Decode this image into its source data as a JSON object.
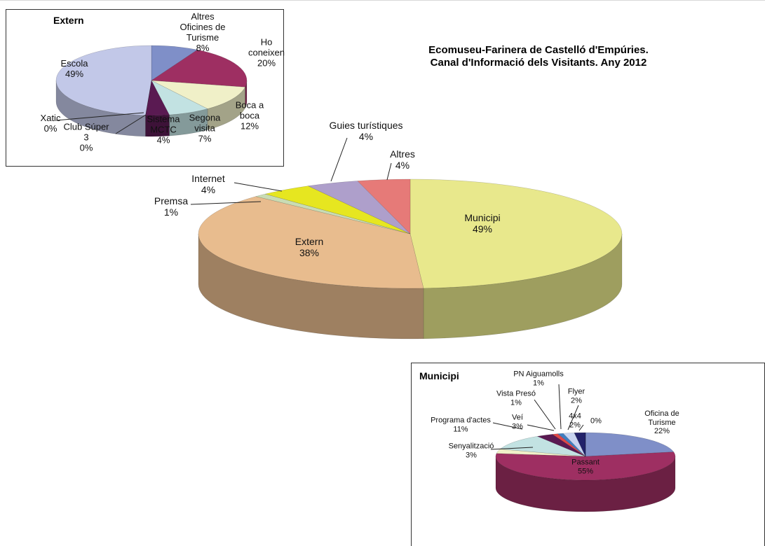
{
  "chart_data": [
    {
      "type": "pie",
      "title": [
        "Ecomuseu-Farinera de Castelló d'Empúries.",
        "Canal d'Informació dels Visitants. Any 2012"
      ],
      "categories": [
        "Municipi",
        "Extern",
        "Premsa",
        "Internet",
        "Guies turístiques",
        "Altres"
      ],
      "values": [
        49,
        38,
        1,
        4,
        4,
        4
      ],
      "value_labels": [
        "49%",
        "38%",
        "1%",
        "4%",
        "4%",
        "4%"
      ],
      "colors": [
        "#e8e88c",
        "#e8bc8e",
        "#c9dcb4",
        "#e6e620",
        "#ae9fcb",
        "#e67a78"
      ]
    },
    {
      "type": "pie",
      "title": "Extern",
      "categories": [
        "Altres Oficines de Turisme",
        "Ho coneixen",
        "Boca a boca",
        "Segona visita",
        "Sistema MCTC",
        "Club Súper 3",
        "Xatic",
        "Escola"
      ],
      "values": [
        8,
        20,
        12,
        7,
        4,
        0,
        0,
        49
      ],
      "value_labels": [
        "8%",
        "20%",
        "12%",
        "7%",
        "4%",
        "0%",
        "0%",
        "49%"
      ],
      "colors": [
        "#7f8fc8",
        "#9e2f62",
        "#f0f0c8",
        "#c2e2e2",
        "#5a1a52",
        "#2a64a8",
        "#e06040",
        "#c2c8e8"
      ]
    },
    {
      "type": "pie",
      "title": "Municipi",
      "categories": [
        "Oficina de Turisme",
        "Passant",
        "Senyalització",
        "Programa d'actes",
        "Veí",
        "Vista Presó",
        "PN Aiguamolls",
        "Flyer",
        "4x4",
        null
      ],
      "values": [
        22,
        55,
        3,
        11,
        3,
        1,
        1,
        2,
        2,
        0
      ],
      "value_labels": [
        "22%",
        "55%",
        "3%",
        "11%",
        "3%",
        "1%",
        "1%",
        "2%",
        "2%",
        "0%"
      ],
      "colors": [
        "#7f8fc8",
        "#9e2f62",
        "#f0f0c8",
        "#c2e2e2",
        "#5a1a52",
        "#e04848",
        "#3f7ec0",
        "#c8d4f0",
        "#22226a",
        "#888888"
      ]
    }
  ]
}
